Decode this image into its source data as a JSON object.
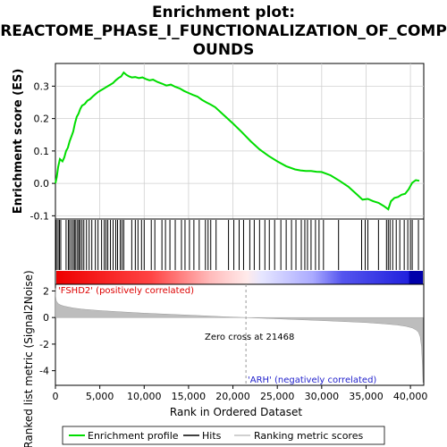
{
  "chart_data": [
    {
      "type": "line",
      "panel": "enrichment",
      "title_lines": [
        "Enrichment plot:",
        "REACTOME_PHASE_I_FUNCTIONALIZATION_OF_COMP",
        "OUNDS"
      ],
      "ylabel": "Enrichment score (ES)",
      "xlim": [
        0,
        41500
      ],
      "ylim": [
        -0.11,
        0.37
      ],
      "yticks": [
        -0.1,
        0.0,
        0.1,
        0.2,
        0.3
      ],
      "ytick_labels": [
        "-0.1",
        "0.0",
        "0.1",
        "0.2",
        "0.3"
      ],
      "grid": true,
      "series": [
        {
          "name": "Enrichment profile",
          "color": "#00dd00",
          "x": [
            0,
            150,
            300,
            500,
            800,
            1000,
            1200,
            1400,
            1600,
            1800,
            2000,
            2200,
            2400,
            2600,
            2800,
            3000,
            3300,
            3600,
            3900,
            4200,
            4500,
            4800,
            5000,
            5300,
            5600,
            5900,
            6200,
            6500,
            6800,
            7100,
            7400,
            7700,
            8000,
            8300,
            8600,
            9000,
            9400,
            9800,
            10200,
            10600,
            11000,
            11500,
            12000,
            12500,
            13000,
            13500,
            14000,
            14500,
            15000,
            15500,
            16000,
            16500,
            17000,
            17500,
            18000,
            19000,
            20000,
            21000,
            22000,
            23000,
            24000,
            25000,
            26000,
            27000,
            27600,
            28200,
            28800,
            29400,
            30000,
            31000,
            32000,
            33000,
            34000,
            34600,
            35200,
            35800,
            36400,
            37000,
            37500,
            37800,
            38200,
            38600,
            39000,
            39400,
            39800,
            40200,
            40600,
            41000
          ],
          "y": [
            0.0,
            0.02,
            0.05,
            0.075,
            0.068,
            0.08,
            0.1,
            0.11,
            0.13,
            0.145,
            0.16,
            0.185,
            0.205,
            0.215,
            0.23,
            0.24,
            0.245,
            0.255,
            0.26,
            0.268,
            0.275,
            0.282,
            0.285,
            0.29,
            0.295,
            0.3,
            0.305,
            0.31,
            0.318,
            0.325,
            0.33,
            0.342,
            0.335,
            0.33,
            0.327,
            0.328,
            0.325,
            0.327,
            0.322,
            0.318,
            0.32,
            0.313,
            0.308,
            0.302,
            0.305,
            0.298,
            0.293,
            0.285,
            0.279,
            0.273,
            0.268,
            0.258,
            0.25,
            0.243,
            0.235,
            0.21,
            0.185,
            0.158,
            0.13,
            0.105,
            0.085,
            0.068,
            0.053,
            0.043,
            0.04,
            0.038,
            0.038,
            0.036,
            0.035,
            0.025,
            0.008,
            -0.01,
            -0.035,
            -0.05,
            -0.048,
            -0.055,
            -0.06,
            -0.07,
            -0.08,
            -0.055,
            -0.045,
            -0.042,
            -0.035,
            -0.032,
            -0.018,
            0.002,
            0.01,
            0.008
          ]
        }
      ]
    },
    {
      "type": "scatter",
      "panel": "hits",
      "series": [
        {
          "name": "Hits",
          "color": "#000000",
          "x": [
            100,
            300,
            450,
            600,
            1200,
            1450,
            1600,
            1800,
            2000,
            2150,
            2300,
            2500,
            2650,
            2800,
            3000,
            3200,
            3500,
            3800,
            4100,
            4500,
            4800,
            5200,
            5500,
            5700,
            5900,
            6200,
            6500,
            6800,
            7000,
            7300,
            7500,
            7700,
            8600,
            9000,
            9300,
            9700,
            10000,
            10800,
            11200,
            12000,
            12400,
            12900,
            13500,
            14200,
            14600,
            15100,
            15600,
            16200,
            16900,
            17200,
            17500,
            18100,
            19500,
            20100,
            20700,
            21200,
            21900,
            22400,
            23000,
            23600,
            24100,
            24700,
            25400,
            26000,
            26600,
            27100,
            27700,
            28100,
            28400,
            28800,
            29300,
            29700,
            30200,
            31900,
            34500,
            34900,
            35200,
            36400,
            37300,
            37500,
            37700,
            38000,
            38400,
            38800,
            39300,
            39700,
            40000,
            40200,
            40900
          ]
        }
      ]
    },
    {
      "type": "area",
      "panel": "ranked-metric",
      "ylabel": "Ranked list metric (Signal2Noise)",
      "xlabel": "Rank in Ordered Dataset",
      "xlim": [
        0,
        41500
      ],
      "ylim": [
        -5.1,
        2.5
      ],
      "yticks": [
        -4,
        -2,
        0,
        2
      ],
      "ytick_labels": [
        "-4",
        "-2",
        "0",
        "2"
      ],
      "xticks": [
        0,
        5000,
        10000,
        15000,
        20000,
        25000,
        30000,
        35000,
        40000
      ],
      "xtick_labels": [
        "0",
        "5,000",
        "10,000",
        "15,000",
        "20,000",
        "25,000",
        "30,000",
        "35,000",
        "40,000"
      ],
      "series": [
        {
          "name": "Ranking metric scores",
          "color": "#c0c0c0",
          "x": [
            0,
            20,
            100,
            300,
            600,
            1000,
            2000,
            3000,
            5000,
            7000,
            10000,
            13000,
            16000,
            19000,
            21468,
            24000,
            27000,
            30000,
            33000,
            35000,
            37000,
            38500,
            39500,
            40200,
            40600,
            40900,
            41100,
            41250,
            41350,
            41420
          ],
          "y": [
            2.2,
            1.6,
            1.25,
            1.05,
            0.93,
            0.85,
            0.72,
            0.63,
            0.52,
            0.44,
            0.33,
            0.24,
            0.15,
            0.06,
            0.0,
            -0.07,
            -0.15,
            -0.23,
            -0.32,
            -0.38,
            -0.47,
            -0.56,
            -0.66,
            -0.78,
            -0.92,
            -1.1,
            -1.45,
            -2.2,
            -3.6,
            -4.9
          ]
        }
      ],
      "zero_cross": 21468,
      "zero_cross_label": "Zero cross at 21468",
      "pos_label": "'FSHD2' (positively correlated)",
      "neg_label": "'ARH' (negatively correlated)"
    }
  ],
  "legend": {
    "items": [
      {
        "label": "Enrichment profile",
        "color": "#00dd00"
      },
      {
        "label": "Hits",
        "color": "#000000"
      },
      {
        "label": "Ranking metric scores",
        "color": "#c0c0c0"
      }
    ]
  },
  "colors": {
    "pos_text": "#dd0000",
    "neg_text": "#2222cc",
    "bar_red": "#ee0000",
    "bar_blue": "#1111dd",
    "bar_dark_blue": "#0000aa"
  }
}
